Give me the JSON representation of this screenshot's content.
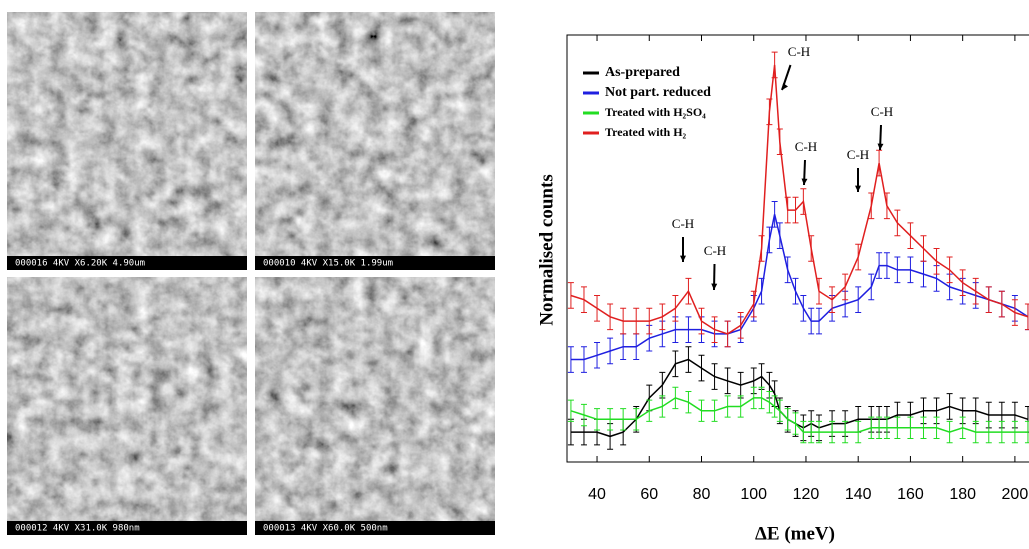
{
  "panels": [
    {
      "caption": "000016  4KV X6.20K 4.90um"
    },
    {
      "caption": "000010  4KV X15.0K 1.99um"
    },
    {
      "caption": "000012  4KV X31.0K 980nm"
    },
    {
      "caption": "000013  4KV X60.0K 500nm"
    }
  ],
  "chart_data": {
    "type": "line",
    "x_label": "ΔE (meV)",
    "y_label": "Normalised counts",
    "xlim": [
      28.5,
      205.4
    ],
    "xticks": [
      40,
      60,
      80,
      100,
      120,
      140,
      160,
      180,
      200
    ],
    "ylim": [
      0,
      10
    ],
    "legend": "upper-left",
    "annotations": [
      "C-H",
      "C-H",
      "C-H",
      "C-H",
      "C-H",
      "C-H"
    ],
    "x": [
      30,
      35,
      40,
      45,
      50,
      55,
      60,
      65,
      70,
      75,
      80,
      85,
      90,
      95,
      100,
      103,
      106,
      108,
      110,
      113,
      116,
      119,
      122,
      125,
      130,
      135,
      140,
      145,
      148,
      151,
      155,
      160,
      165,
      170,
      175,
      180,
      185,
      190,
      195,
      200,
      205
    ],
    "series": [
      {
        "name": "As-prepared",
        "color": "#000000",
        "error": 0.3,
        "values": [
          0.7,
          0.7,
          0.7,
          0.6,
          0.7,
          1.0,
          1.5,
          1.8,
          2.3,
          2.4,
          2.2,
          2.0,
          1.9,
          1.8,
          1.9,
          2.0,
          1.8,
          1.6,
          1.2,
          1.0,
          0.9,
          0.8,
          0.9,
          0.8,
          0.9,
          0.9,
          1.0,
          1.0,
          1.0,
          1.0,
          1.1,
          1.1,
          1.2,
          1.2,
          1.3,
          1.2,
          1.2,
          1.1,
          1.1,
          1.1,
          1.0
        ]
      },
      {
        "name": "Not part. reduced",
        "color": "#1f1fe0",
        "error": 0.3,
        "values": [
          2.4,
          2.4,
          2.5,
          2.6,
          2.7,
          2.7,
          2.9,
          3.0,
          3.1,
          3.1,
          3.1,
          3.0,
          3.0,
          3.1,
          3.6,
          4.0,
          5.2,
          5.8,
          5.3,
          4.5,
          4.0,
          3.6,
          3.3,
          3.3,
          3.6,
          3.7,
          3.8,
          4.1,
          4.6,
          4.6,
          4.5,
          4.5,
          4.4,
          4.3,
          4.1,
          4.0,
          3.9,
          3.8,
          3.7,
          3.6,
          3.4
        ]
      },
      {
        "name": "Treated with H₂SO₄",
        "color": "#22dd22",
        "error": 0.25,
        "values": [
          1.2,
          1.1,
          1.0,
          1.0,
          1.0,
          1.0,
          1.2,
          1.3,
          1.5,
          1.4,
          1.2,
          1.2,
          1.3,
          1.3,
          1.5,
          1.5,
          1.4,
          1.3,
          1.2,
          1.0,
          0.9,
          0.7,
          0.7,
          0.7,
          0.7,
          0.7,
          0.7,
          0.8,
          0.8,
          0.8,
          0.8,
          0.8,
          0.8,
          0.8,
          0.7,
          0.8,
          0.7,
          0.7,
          0.7,
          0.7,
          0.7
        ]
      },
      {
        "name": "Treated with H₂",
        "color": "#e01f1f",
        "error": 0.3,
        "values": [
          3.9,
          3.8,
          3.6,
          3.4,
          3.3,
          3.3,
          3.3,
          3.4,
          3.6,
          4.0,
          3.3,
          3.1,
          3.0,
          3.2,
          3.7,
          5.0,
          8.2,
          9.3,
          7.5,
          5.9,
          5.9,
          6.1,
          5.0,
          4.0,
          3.8,
          4.1,
          4.8,
          6.0,
          7.0,
          6.0,
          5.6,
          5.3,
          5.0,
          4.7,
          4.5,
          4.2,
          4.0,
          3.8,
          3.7,
          3.5,
          3.4
        ]
      }
    ]
  }
}
